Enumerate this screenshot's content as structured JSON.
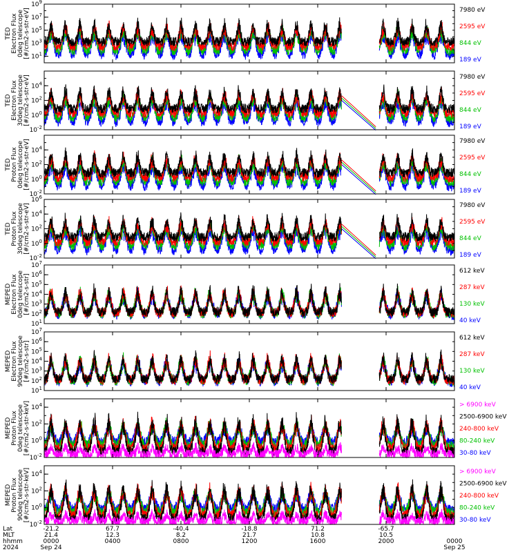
{
  "chart_data": {
    "type": "line",
    "x_axis": {
      "rows": [
        {
          "label": "Lat",
          "values": [
            "-21.2",
            "67.7",
            "-40.4",
            "-18.8",
            "71.2",
            "-65.7",
            ""
          ]
        },
        {
          "label": "MLT",
          "values": [
            "21.4",
            "12.3",
            "8.2",
            "21.7",
            "10.8",
            "10.5",
            ""
          ]
        },
        {
          "label": "hhmm",
          "values": [
            "0000",
            "0400",
            "0800",
            "1200",
            "1600",
            "2000",
            "0000"
          ]
        },
        {
          "label": "2024",
          "values": [
            "Sep 24",
            "",
            "",
            "",
            "",
            "",
            "Sep 25"
          ]
        }
      ],
      "range_hours": [
        0,
        24
      ],
      "data_gap_hours": [
        17.4,
        19.6
      ]
    },
    "panels": [
      {
        "ylabel_lines": [
          "TED",
          "Electron Flux",
          "0deg telescope",
          "[#/cm2-s-str-eV]"
        ],
        "y_range_exp": [
          0,
          9
        ],
        "y_tick_exps": [
          1,
          3,
          5,
          7,
          9
        ],
        "legend": [
          {
            "text": "7980 eV",
            "color": "#000000"
          },
          {
            "text": "2595 eV",
            "color": "#ff0000"
          },
          {
            "text": "844 eV",
            "color": "#00c000"
          },
          {
            "text": "189 eV",
            "color": "#0000ff"
          }
        ]
      },
      {
        "ylabel_lines": [
          "TED",
          "Electron Flux",
          "30deg telescope",
          "[#/cm2-s-str-eV]"
        ],
        "y_range_exp": [
          -2,
          6
        ],
        "y_tick_exps": [
          -2,
          0,
          2,
          4
        ],
        "legend": [
          {
            "text": "7980 eV",
            "color": "#000000"
          },
          {
            "text": "2595 eV",
            "color": "#ff0000"
          },
          {
            "text": "844 eV",
            "color": "#00c000"
          },
          {
            "text": "189 eV",
            "color": "#0000ff"
          }
        ]
      },
      {
        "ylabel_lines": [
          "TED",
          "Proton Flux",
          "0deg telescope",
          "[#/cm2-s-str-eV]"
        ],
        "y_range_exp": [
          -2,
          6
        ],
        "y_tick_exps": [
          -2,
          0,
          2,
          4
        ],
        "legend": [
          {
            "text": "7980 eV",
            "color": "#000000"
          },
          {
            "text": "2595 eV",
            "color": "#ff0000"
          },
          {
            "text": "844 eV",
            "color": "#00c000"
          },
          {
            "text": "189 eV",
            "color": "#0000ff"
          }
        ]
      },
      {
        "ylabel_lines": [
          "TED",
          "Proton Flux",
          "30deg telescope",
          "[#/cm2-s-str-eV]"
        ],
        "y_range_exp": [
          -2,
          6
        ],
        "y_tick_exps": [
          -2,
          0,
          2,
          4,
          6
        ],
        "legend": [
          {
            "text": "7980 eV",
            "color": "#000000"
          },
          {
            "text": "2595 eV",
            "color": "#ff0000"
          },
          {
            "text": "844 eV",
            "color": "#00c000"
          },
          {
            "text": "189 eV",
            "color": "#0000ff"
          }
        ]
      },
      {
        "ylabel_lines": [
          "MEPED",
          "Electron Flux",
          "0deg telescope",
          "[#/cm2-s-str]"
        ],
        "y_range_exp": [
          1,
          7
        ],
        "y_tick_exps": [
          1,
          2,
          3,
          4,
          5,
          6,
          7
        ],
        "legend": [
          {
            "text": "612 keV",
            "color": "#000000"
          },
          {
            "text": "287 keV",
            "color": "#ff0000"
          },
          {
            "text": "130 keV",
            "color": "#00c000"
          },
          {
            "text": "40 keV",
            "color": "#0000ff"
          }
        ]
      },
      {
        "ylabel_lines": [
          "MEPED",
          "Electron Flux",
          "90deg telescope",
          "[#/cm2-s-str]"
        ],
        "y_range_exp": [
          1,
          7
        ],
        "y_tick_exps": [
          1,
          2,
          3,
          4,
          5,
          6,
          7
        ],
        "legend": [
          {
            "text": "612 keV",
            "color": "#000000"
          },
          {
            "text": "287 keV",
            "color": "#ff0000"
          },
          {
            "text": "130 keV",
            "color": "#00c000"
          },
          {
            "text": "40 keV",
            "color": "#0000ff"
          }
        ]
      },
      {
        "ylabel_lines": [
          "MEPED",
          "Proton Flux",
          "0deg telescope",
          "[#/cm2-s-str-keV]"
        ],
        "y_range_exp": [
          -2,
          5
        ],
        "y_tick_exps": [
          -2,
          0,
          2,
          4
        ],
        "legend": [
          {
            "text": "> 6900 keV",
            "color": "#ff00ff"
          },
          {
            "text": "2500-6900 keV",
            "color": "#000000"
          },
          {
            "text": "240-800 keV",
            "color": "#ff0000"
          },
          {
            "text": "80-240 keV",
            "color": "#00c000"
          },
          {
            "text": "30-80 keV",
            "color": "#0000ff"
          }
        ]
      },
      {
        "ylabel_lines": [
          "MEPED",
          "Proton Flux",
          "90deg telescope",
          "[#/cm2-s-str-keV]"
        ],
        "y_range_exp": [
          -2,
          5
        ],
        "y_tick_exps": [
          -2,
          0,
          2,
          4
        ],
        "legend": [
          {
            "text": "> 6900 keV",
            "color": "#ff00ff"
          },
          {
            "text": "2500-6900 keV",
            "color": "#000000"
          },
          {
            "text": "240-800 keV",
            "color": "#ff0000"
          },
          {
            "text": "80-240 keV",
            "color": "#00c000"
          },
          {
            "text": "30-80 keV",
            "color": "#0000ff"
          }
        ]
      }
    ]
  }
}
